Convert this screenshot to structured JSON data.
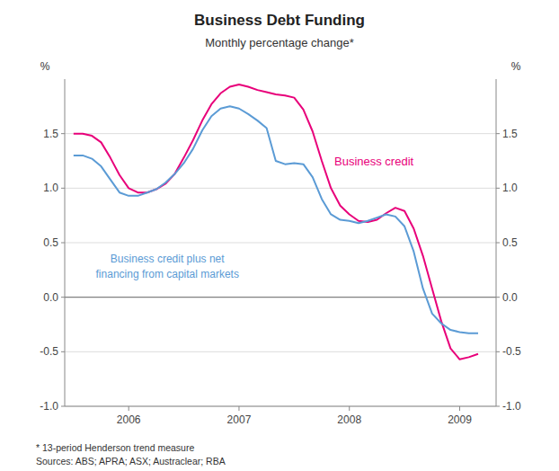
{
  "chart_data": {
    "type": "line",
    "title": "Business Debt Funding",
    "subtitle": "Monthly percentage change*",
    "ylabel": "%",
    "y2label": "%",
    "footnote": "*   13-period Henderson trend measure",
    "source": "Sources: ABS; APRA; ASX; Austraclear; RBA",
    "grid": true,
    "xlim": [
      2005.42,
      2009.33
    ],
    "xticks": [
      2006,
      2007,
      2008,
      2009
    ],
    "ylim": [
      -1.0,
      2.0
    ],
    "yticks": [
      {
        "value": -1.0,
        "label": "-1.0"
      },
      -0.5,
      {
        "value": 0.0,
        "label": "0.0"
      },
      0.5,
      {
        "value": 1.0,
        "label": "1.0"
      },
      1.5
    ],
    "y2lim": [
      -1.0,
      2.0
    ],
    "y2ticks": [
      {
        "value": -1.0,
        "label": "-1.0"
      },
      -0.5,
      {
        "value": 0.0,
        "label": "0.0"
      },
      0.5,
      {
        "value": 1.0,
        "label": "1.0"
      },
      1.5
    ],
    "x": [
      2005.5,
      2005.583,
      2005.667,
      2005.75,
      2005.833,
      2005.917,
      2006.0,
      2006.083,
      2006.167,
      2006.25,
      2006.333,
      2006.417,
      2006.5,
      2006.583,
      2006.667,
      2006.75,
      2006.833,
      2006.917,
      2007.0,
      2007.083,
      2007.167,
      2007.25,
      2007.333,
      2007.417,
      2007.5,
      2007.583,
      2007.667,
      2007.75,
      2007.833,
      2007.917,
      2008.0,
      2008.083,
      2008.167,
      2008.25,
      2008.333,
      2008.417,
      2008.5,
      2008.583,
      2008.667,
      2008.75,
      2008.833,
      2008.917,
      2009.0,
      2009.083,
      2009.167
    ],
    "series": [
      {
        "name": "Business credit",
        "color": "#E8007A",
        "values": [
          1.5,
          1.5,
          1.48,
          1.42,
          1.28,
          1.12,
          1.0,
          0.96,
          0.96,
          0.99,
          1.04,
          1.13,
          1.28,
          1.44,
          1.62,
          1.77,
          1.87,
          1.93,
          1.95,
          1.93,
          1.9,
          1.88,
          1.86,
          1.85,
          1.83,
          1.72,
          1.52,
          1.25,
          1.0,
          0.84,
          0.76,
          0.7,
          0.69,
          0.71,
          0.77,
          0.82,
          0.79,
          0.63,
          0.38,
          0.08,
          -0.22,
          -0.47,
          -0.57,
          -0.55,
          -0.52
        ]
      },
      {
        "name": "Business credit plus net\nfinancing from capital markets",
        "color": "#5B9BD5",
        "values": [
          1.3,
          1.3,
          1.27,
          1.2,
          1.08,
          0.96,
          0.93,
          0.93,
          0.96,
          0.99,
          1.05,
          1.13,
          1.23,
          1.36,
          1.53,
          1.66,
          1.73,
          1.75,
          1.73,
          1.68,
          1.62,
          1.55,
          1.25,
          1.22,
          1.23,
          1.22,
          1.1,
          0.9,
          0.76,
          0.71,
          0.7,
          0.68,
          0.7,
          0.73,
          0.76,
          0.74,
          0.65,
          0.42,
          0.08,
          -0.15,
          -0.24,
          -0.3,
          -0.32,
          -0.33,
          -0.33
        ]
      }
    ]
  }
}
